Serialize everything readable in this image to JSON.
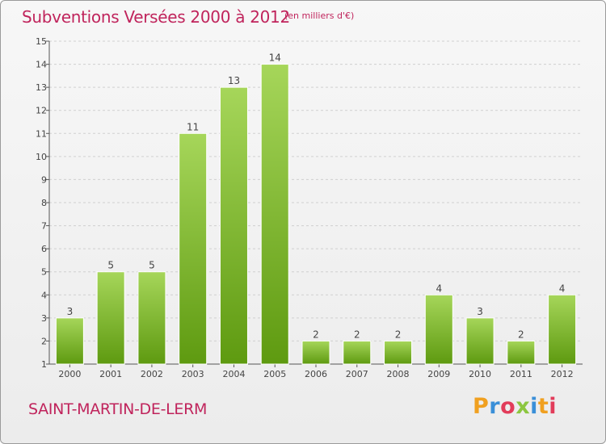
{
  "title": "Subventions Versées 2000 à 2012",
  "unit_note": "(en milliers d'€)",
  "commune": "SAINT-MARTIN-DE-LERM",
  "logo": {
    "text": "Proxiti",
    "letter_colors": [
      "#f0a020",
      "#3a8fd8",
      "#e23c5a",
      "#8cc63f",
      "#3a8fd8",
      "#f0a020",
      "#e23c5a"
    ]
  },
  "colors": {
    "title": "#c0245c",
    "bar_light": "#a6d65a",
    "bar_dark": "#5e9a10",
    "axis": "#555555",
    "grid": "#d0d0d0"
  },
  "chart_data": {
    "type": "bar",
    "title": "Subventions Versées 2000 à 2012",
    "categories": [
      "2000",
      "2001",
      "2002",
      "2003",
      "2004",
      "2005",
      "2006",
      "2007",
      "2008",
      "2009",
      "2010",
      "2011",
      "2012"
    ],
    "values": [
      3,
      5,
      5,
      11,
      13,
      14,
      2,
      2,
      2,
      4,
      3,
      2,
      4
    ],
    "ylim": [
      1,
      15
    ],
    "yticks": [
      1,
      2,
      3,
      4,
      5,
      6,
      7,
      8,
      9,
      10,
      11,
      12,
      13,
      14,
      15
    ],
    "grid": "horizontal dashed",
    "data_labels": true
  }
}
